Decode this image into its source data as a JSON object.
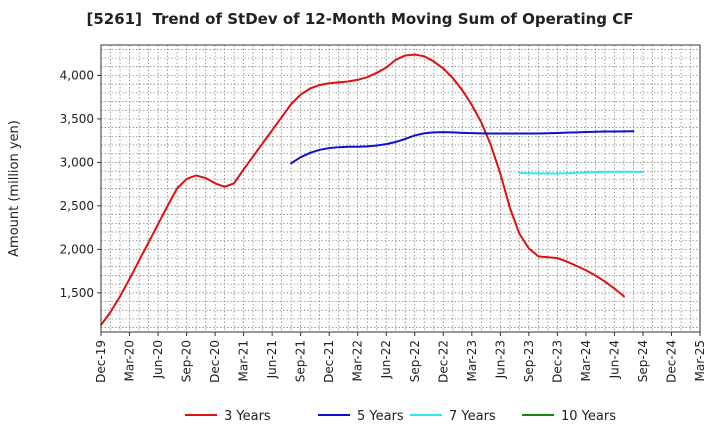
{
  "chart_data": {
    "type": "line",
    "title": "[5261]  Trend of StDev of 12-Month Moving Sum of Operating CF",
    "ylabel": "Amount (million yen)",
    "xlabel": "",
    "ylim": [
      1050,
      4350
    ],
    "xlim": [
      "2019-12",
      "2025-03"
    ],
    "yticks": [
      1500,
      2000,
      2500,
      3000,
      3500,
      4000
    ],
    "ytick_labels": [
      "1,500",
      "2,000",
      "2,500",
      "3,000",
      "3,500",
      "4,000"
    ],
    "xtick_labels": [
      "Dec-19",
      "Mar-20",
      "Jun-20",
      "Sep-20",
      "Dec-20",
      "Mar-21",
      "Jun-21",
      "Sep-21",
      "Dec-21",
      "Mar-22",
      "Jun-22",
      "Sep-22",
      "Dec-22",
      "Mar-23",
      "Jun-23",
      "Sep-23",
      "Dec-23",
      "Mar-24",
      "Jun-24",
      "Sep-24",
      "Dec-24",
      "Mar-25"
    ],
    "grid": true,
    "legend_position": "bottom",
    "series": [
      {
        "name": "3 Years",
        "color": "#dd1111",
        "start": "2019-12",
        "values": [
          1130,
          1280,
          1460,
          1660,
          1870,
          2080,
          2290,
          2500,
          2700,
          2810,
          2850,
          2820,
          2760,
          2720,
          2760,
          2920,
          3070,
          3220,
          3370,
          3520,
          3670,
          3780,
          3850,
          3890,
          3910,
          3920,
          3930,
          3950,
          3980,
          4030,
          4090,
          4180,
          4230,
          4240,
          4220,
          4160,
          4080,
          3970,
          3830,
          3660,
          3460,
          3200,
          2870,
          2480,
          2180,
          2010,
          1920,
          1910,
          1900,
          1860,
          1810,
          1760,
          1700,
          1630,
          1550,
          1460
        ]
      },
      {
        "name": "5 Years",
        "color": "#1111cc",
        "start": "2021-08",
        "values": [
          2990,
          3060,
          3110,
          3145,
          3165,
          3175,
          3180,
          3180,
          3185,
          3195,
          3210,
          3235,
          3270,
          3310,
          3335,
          3345,
          3348,
          3345,
          3340,
          3337,
          3334,
          3333,
          3333,
          3332,
          3333,
          3333,
          3333,
          3335,
          3338,
          3342,
          3346,
          3350,
          3353,
          3355,
          3356,
          3357,
          3358
        ]
      },
      {
        "name": "7 Years",
        "color": "#33e6f0",
        "start": "2023-08",
        "values": [
          2878,
          2876,
          2874,
          2872,
          2873,
          2876,
          2880,
          2884,
          2888,
          2891,
          2893,
          2893,
          2892,
          2890
        ]
      },
      {
        "name": "10 Years",
        "color": "#118811",
        "start": "2023-08",
        "values": []
      }
    ]
  }
}
